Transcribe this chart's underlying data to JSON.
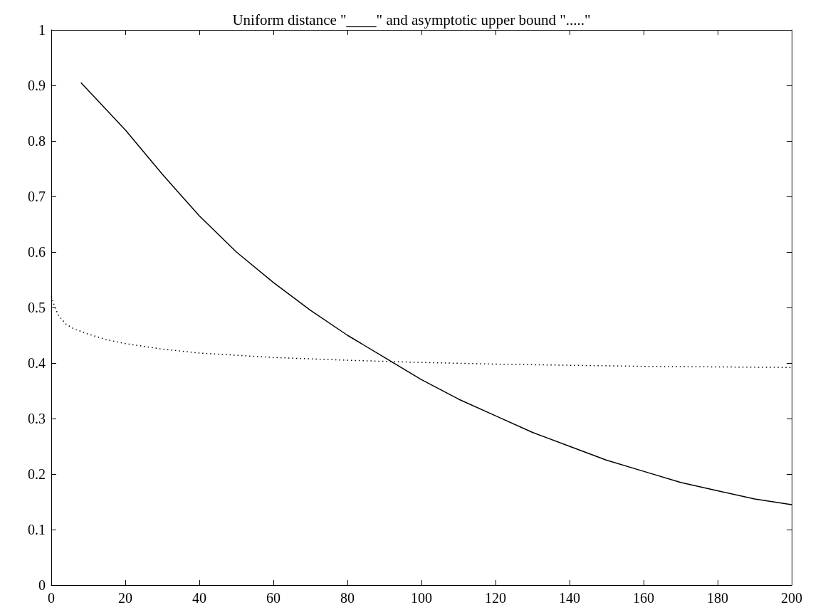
{
  "chart_data": {
    "type": "line",
    "title": "Uniform distance \"____\" and asymptotic upper bound \".....\"",
    "xlim": [
      0,
      200
    ],
    "xticks": [
      0,
      20,
      40,
      60,
      80,
      100,
      120,
      140,
      160,
      180,
      200
    ],
    "ylim": [
      0,
      1
    ],
    "yticks": [
      0,
      0.1,
      0.2,
      0.3,
      0.4,
      0.5,
      0.6,
      0.7,
      0.8,
      0.9,
      1
    ],
    "grid": false,
    "marker": "none",
    "series": [
      {
        "color": "#000000",
        "line_style": "solid",
        "x": [
          8,
          20,
          30,
          40,
          50,
          60,
          70,
          80,
          90,
          100,
          110,
          120,
          130,
          140,
          150,
          160,
          170,
          180,
          190,
          200
        ],
        "values": [
          0.905,
          0.82,
          0.74,
          0.665,
          0.6,
          0.545,
          0.495,
          0.45,
          0.41,
          0.37,
          0.335,
          0.305,
          0.275,
          0.25,
          0.225,
          0.205,
          0.185,
          0.17,
          0.155,
          0.145
        ]
      },
      {
        "color": "#000000",
        "line_style": "dotted",
        "x": [
          0,
          1,
          2,
          4,
          6,
          10,
          15,
          20,
          30,
          40,
          60,
          80,
          100,
          120,
          140,
          160,
          180,
          200
        ],
        "values": [
          0.52,
          0.5,
          0.485,
          0.47,
          0.462,
          0.452,
          0.442,
          0.435,
          0.425,
          0.418,
          0.41,
          0.405,
          0.401,
          0.398,
          0.396,
          0.394,
          0.393,
          0.392
        ]
      }
    ]
  }
}
